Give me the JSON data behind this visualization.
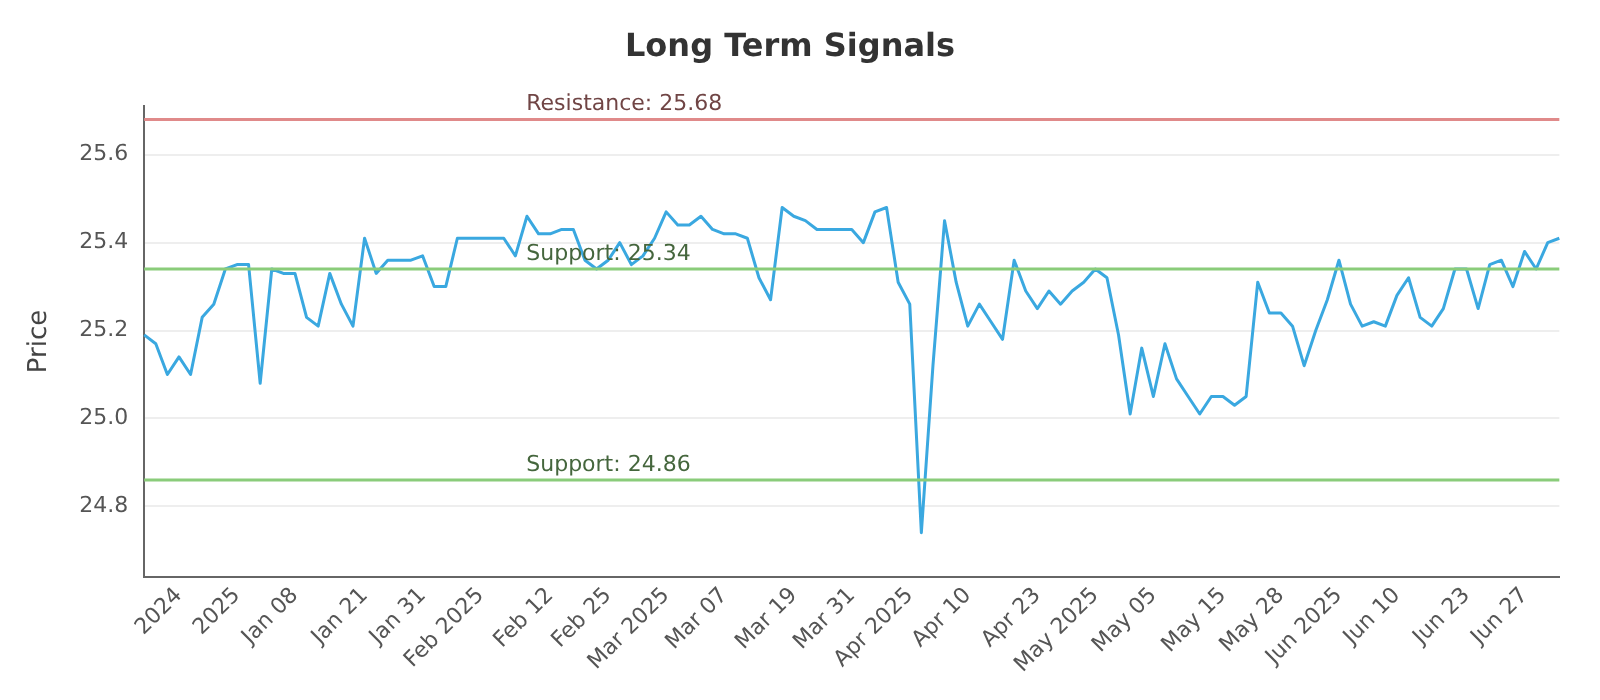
{
  "chart_data": {
    "type": "line",
    "title": "Long Term Signals",
    "ylabel": "Price",
    "categories": [
      null,
      null,
      null,
      "2024",
      null,
      null,
      null,
      null,
      "2025",
      null,
      null,
      null,
      null,
      "Jan 08",
      null,
      null,
      null,
      null,
      null,
      "Jan 21",
      null,
      null,
      null,
      null,
      "Jan 31",
      null,
      null,
      null,
      null,
      "Feb 2025",
      null,
      null,
      null,
      null,
      null,
      "Feb 12",
      null,
      null,
      null,
      null,
      "Feb 25",
      null,
      null,
      null,
      null,
      "Mar 2025",
      null,
      null,
      null,
      null,
      "Mar 07",
      null,
      null,
      null,
      null,
      null,
      "Mar 19",
      null,
      null,
      null,
      null,
      "Mar 31",
      null,
      null,
      null,
      null,
      "Apr 2025",
      null,
      null,
      null,
      null,
      "Apr 10",
      null,
      null,
      null,
      null,
      null,
      "Apr 23",
      null,
      null,
      null,
      null,
      "May 2025",
      null,
      null,
      null,
      null,
      "May 05",
      null,
      null,
      null,
      null,
      null,
      "May 15",
      null,
      null,
      null,
      null,
      "May 28",
      null,
      null,
      null,
      null,
      "Jun 2025",
      null,
      null,
      null,
      null,
      "Jun 10",
      null,
      null,
      null,
      null,
      null,
      "Jun 23",
      null,
      null,
      null,
      null,
      "Jun 27",
      null,
      null,
      null
    ],
    "series": [
      {
        "color": "#3aa8e0",
        "values": [
          25.19,
          25.17,
          25.1,
          25.14,
          25.1,
          25.23,
          25.26,
          25.34,
          25.35,
          25.35,
          25.08,
          25.34,
          25.33,
          25.33,
          25.23,
          25.21,
          25.33,
          25.26,
          25.21,
          25.41,
          25.33,
          25.36,
          25.36,
          25.36,
          25.37,
          25.3,
          25.3,
          25.41,
          25.41,
          25.41,
          25.41,
          25.41,
          25.37,
          25.46,
          25.42,
          25.42,
          25.43,
          25.43,
          25.36,
          25.34,
          25.36,
          25.4,
          25.35,
          25.37,
          25.41,
          25.47,
          25.44,
          25.44,
          25.46,
          25.43,
          25.42,
          25.42,
          25.41,
          25.32,
          25.27,
          25.48,
          25.46,
          25.45,
          25.43,
          25.43,
          25.43,
          25.43,
          25.4,
          25.47,
          25.48,
          25.31,
          25.26,
          24.74,
          25.12,
          25.45,
          25.31,
          25.21,
          25.26,
          25.22,
          25.18,
          25.36,
          25.29,
          25.25,
          25.29,
          25.26,
          25.29,
          25.31,
          25.34,
          25.32,
          25.19,
          25.01,
          25.16,
          25.05,
          25.17,
          25.09,
          25.05,
          25.01,
          25.05,
          25.05,
          25.03,
          25.05,
          25.31,
          25.24,
          25.24,
          25.21,
          25.12,
          25.2,
          25.27,
          25.36,
          25.26,
          25.21,
          25.22,
          25.21,
          25.28,
          25.32,
          25.23,
          25.21,
          25.25,
          25.34,
          25.34,
          25.25,
          25.35,
          25.36,
          25.3,
          25.38,
          25.34,
          25.4,
          25.41
        ]
      }
    ],
    "ylim": [
      24.64,
      25.71
    ],
    "yticks": [
      24.8,
      {
        "value": 25,
        "label": "25.0"
      },
      25.2,
      25.4,
      25.6
    ],
    "ref_lines": [
      {
        "axis": "y",
        "value": 25.68,
        "label": "Resistance: 25.68",
        "color": "#e08a8a"
      },
      {
        "axis": "y",
        "value": 25.34,
        "label": "Support: 25.34",
        "color": "#8acc7a"
      },
      {
        "axis": "y",
        "value": 24.86,
        "label": "Support: 24.86",
        "color": "#8acc7a"
      }
    ],
    "grid": "y",
    "legend": false,
    "marker": "none",
    "line_style": "solid"
  }
}
